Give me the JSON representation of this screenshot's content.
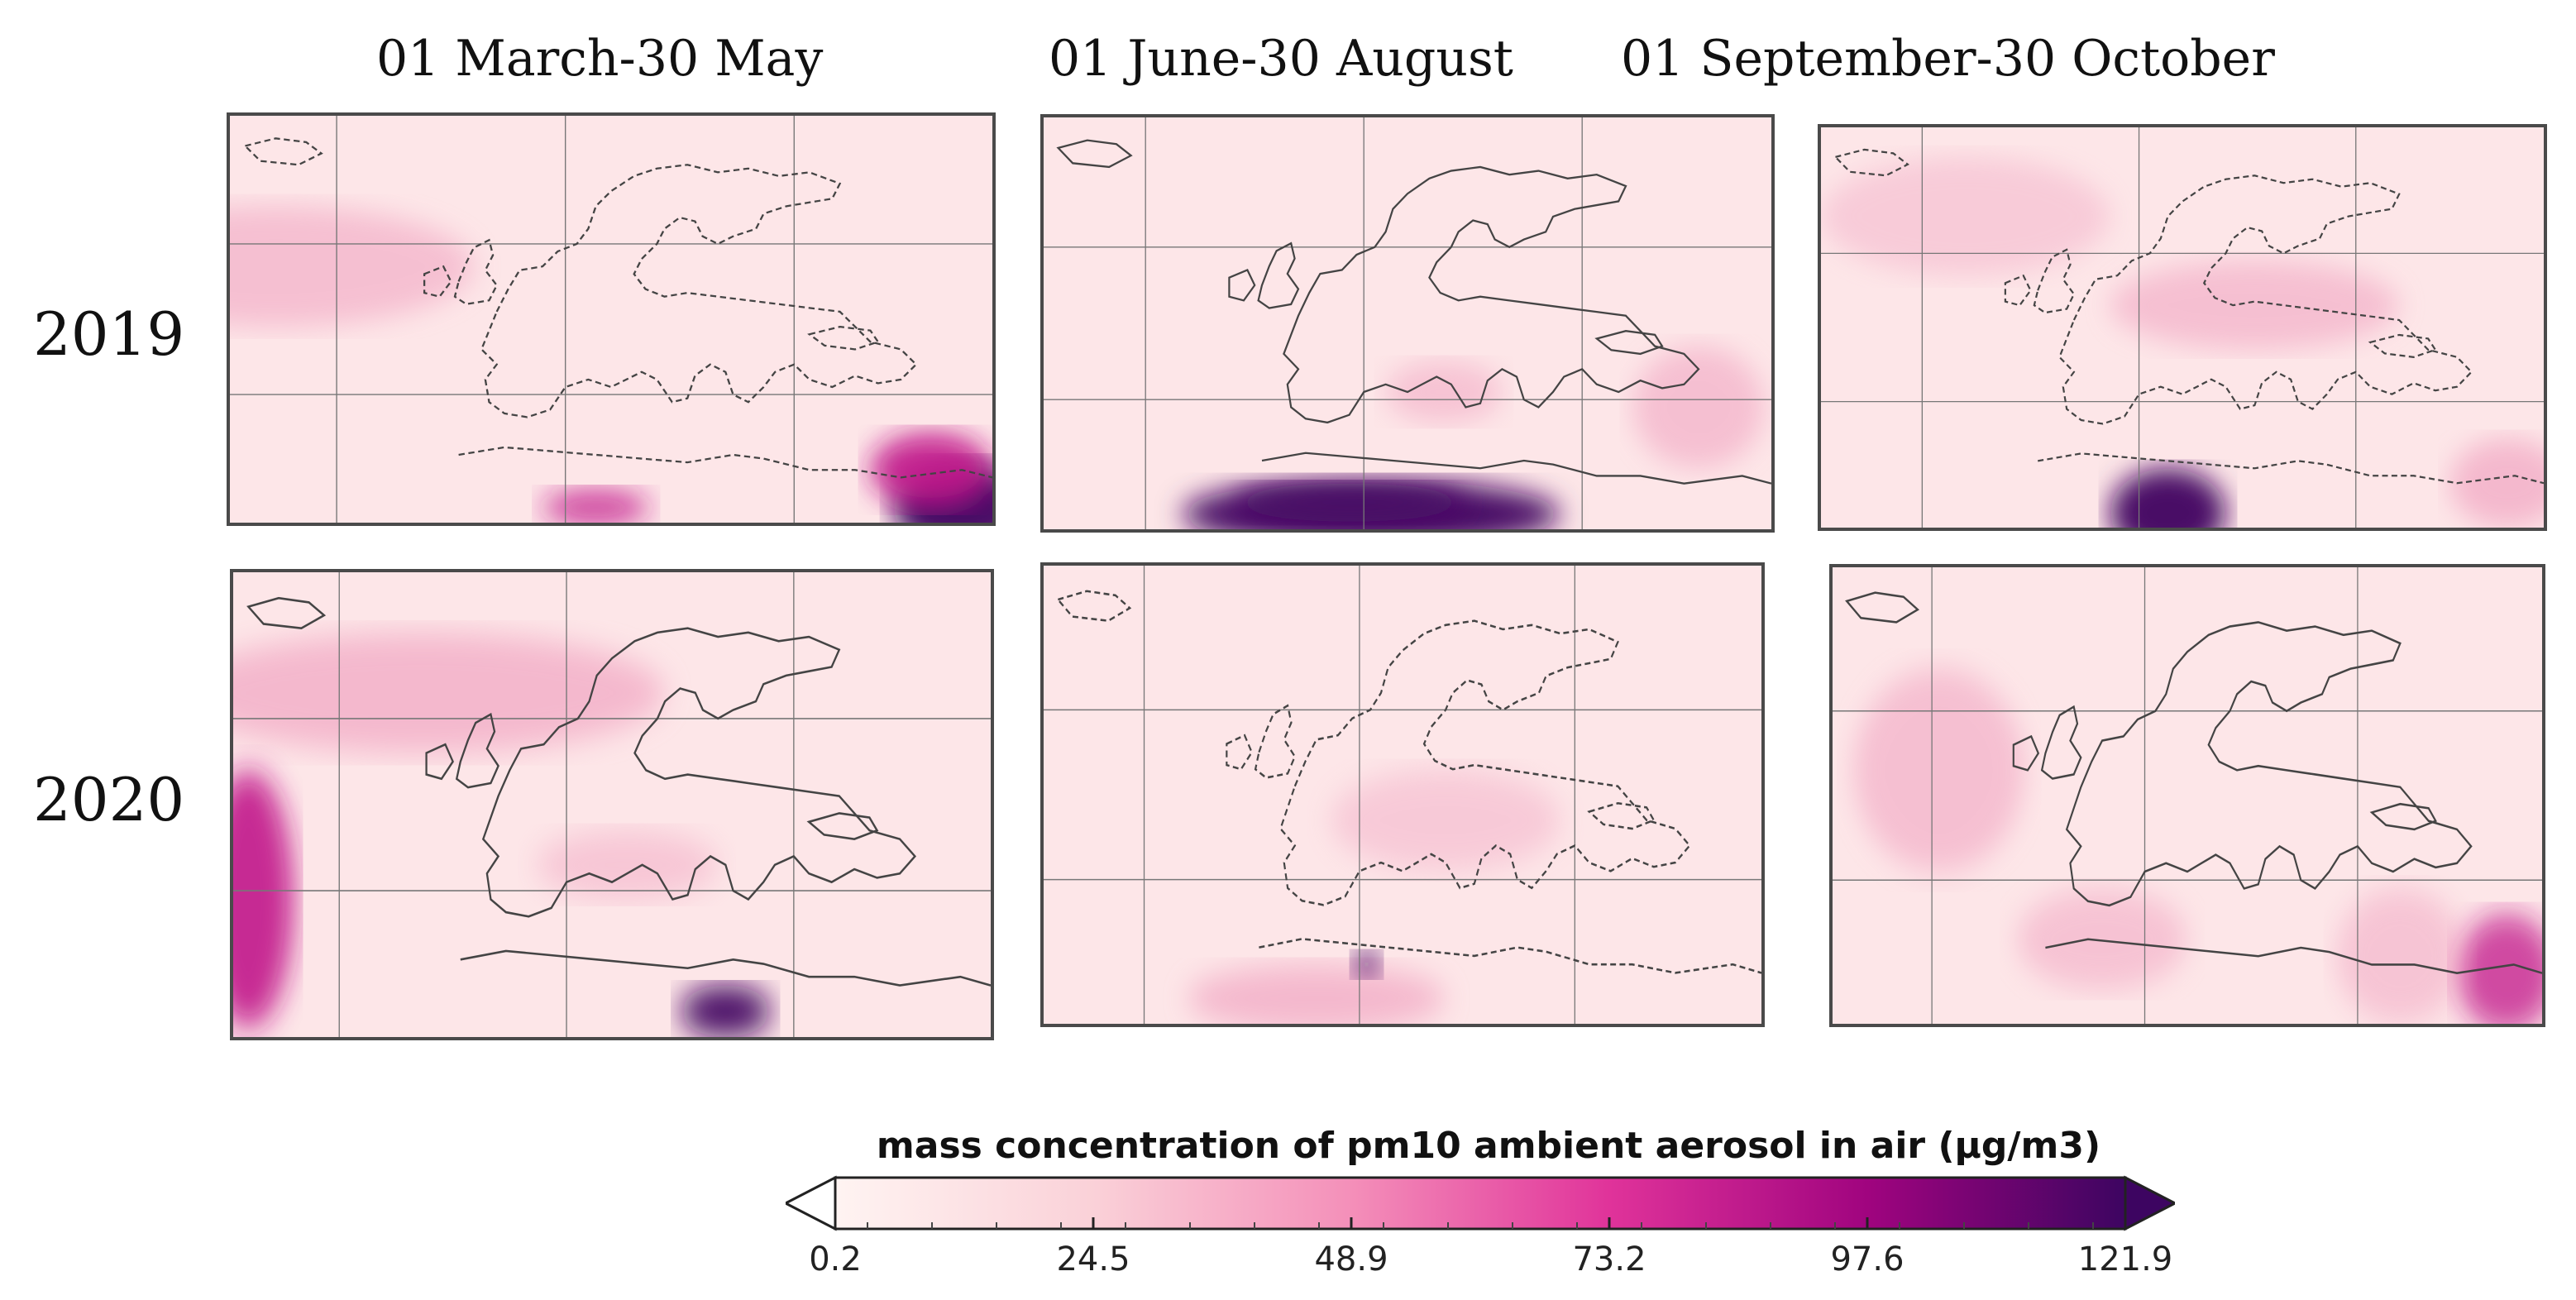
{
  "columns": [
    "01 March-30 May",
    "01 June-30 August",
    "01 September-30 October"
  ],
  "rows": [
    "2019",
    "2020"
  ],
  "colorbar": {
    "title": "mass concentration of pm10 ambient aerosol in air (µg/m3)",
    "ticks": [
      "0.2",
      "24.5",
      "48.9",
      "73.2",
      "97.6",
      "121.9"
    ],
    "min": 0.2,
    "max": 121.9,
    "colors": [
      "#fff4f2",
      "#fad1d8",
      "#f48fb9",
      "#e0339a",
      "#a0047f",
      "#3d0561"
    ],
    "extend": "both"
  }
}
